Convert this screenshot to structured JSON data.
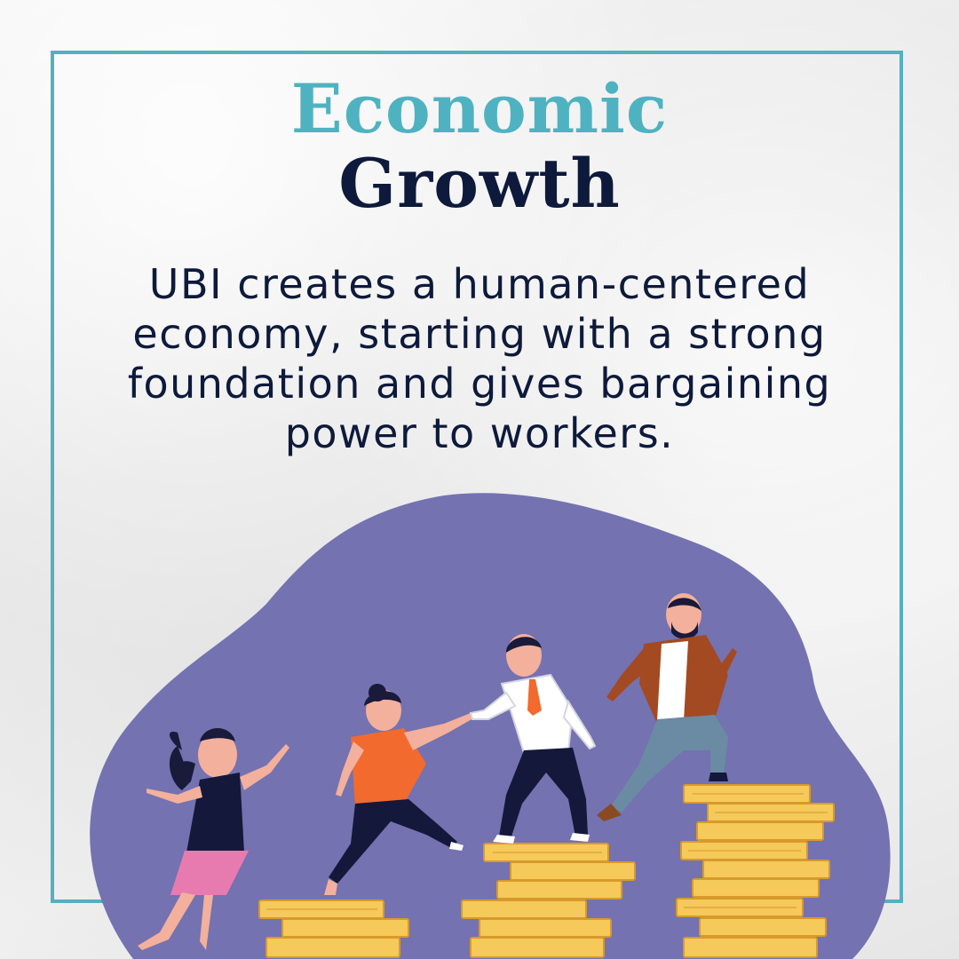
{
  "title": {
    "line1": "Economic",
    "line2": "Growth"
  },
  "body": "UBI creates a human-centered economy, starting with a strong foundation and gives bargaining power to workers.",
  "colors": {
    "accent_teal": "#4fb2c1",
    "navy": "#0e1a3b",
    "blob_purple": "#7472b0",
    "coin_gold": "#f5c95a"
  },
  "illustration": {
    "icons": [
      "woman-pink-skirt-icon",
      "woman-orange-shirt-icon",
      "man-white-shirt-icon",
      "bearded-man-icon",
      "coin-stack-icon"
    ]
  }
}
